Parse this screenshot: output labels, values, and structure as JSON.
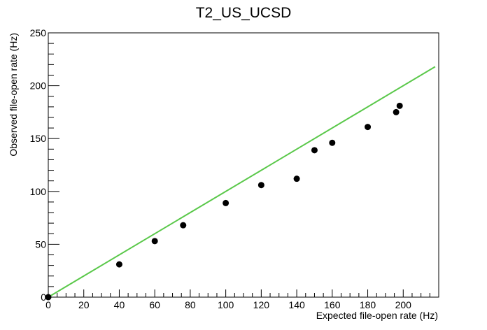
{
  "chart_data": {
    "type": "scatter",
    "title": "T2_US_UCSD",
    "xlabel": "Expected file-open rate (Hz)",
    "ylabel": "Observed file-open rate (Hz)",
    "xlim": [
      0,
      220
    ],
    "ylim": [
      0,
      250
    ],
    "x_ticks": [
      0,
      20,
      40,
      60,
      80,
      100,
      120,
      140,
      160,
      180,
      200
    ],
    "y_ticks": [
      0,
      50,
      100,
      150,
      200,
      250
    ],
    "grid": false,
    "legend": "none",
    "series": [
      {
        "type": "scatter",
        "color": "#000000",
        "marker": "circle",
        "points": [
          {
            "x": 0,
            "y": 0
          },
          {
            "x": 40,
            "y": 31
          },
          {
            "x": 60,
            "y": 53
          },
          {
            "x": 76,
            "y": 68
          },
          {
            "x": 100,
            "y": 89
          },
          {
            "x": 120,
            "y": 106
          },
          {
            "x": 140,
            "y": 112
          },
          {
            "x": 150,
            "y": 139
          },
          {
            "x": 160,
            "y": 146
          },
          {
            "x": 180,
            "y": 161
          },
          {
            "x": 196,
            "y": 175
          },
          {
            "x": 198,
            "y": 181
          }
        ]
      },
      {
        "type": "line",
        "color": "#5ac84a",
        "points": [
          {
            "x": 0,
            "y": 0
          },
          {
            "x": 218,
            "y": 218
          }
        ]
      }
    ]
  }
}
